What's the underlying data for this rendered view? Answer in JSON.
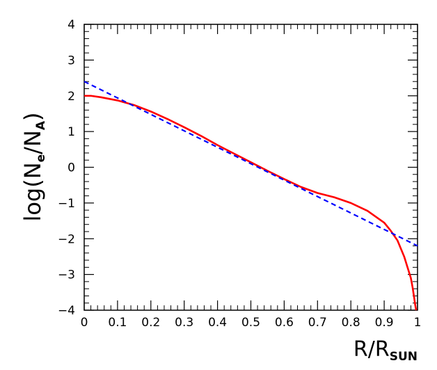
{
  "chart_data": {
    "type": "line",
    "title": "",
    "xlabel": {
      "main": "R/R",
      "sub": "SUN"
    },
    "ylabel": {
      "prefix": "log(N",
      "sub1": "e",
      "mid": "/N",
      "sub2": "A",
      "suffix": ")"
    },
    "xlim": [
      0,
      1
    ],
    "ylim": [
      -4,
      4
    ],
    "x_ticks": [
      0,
      0.1,
      0.2,
      0.3,
      0.4,
      0.5,
      0.6,
      0.7,
      0.8,
      0.9,
      1
    ],
    "x_tick_labels": [
      "0",
      "0.1",
      "0.2",
      "0.3",
      "0.4",
      "0.5",
      "0.6",
      "0.7",
      "0.8",
      "0.9",
      "1"
    ],
    "y_ticks": [
      -4,
      -3,
      -2,
      -1,
      0,
      1,
      2,
      3,
      4
    ],
    "y_tick_labels": [
      "−4",
      "−3",
      "−2",
      "−1",
      "0",
      "1",
      "2",
      "3",
      "4"
    ],
    "grid": false,
    "legend": "none",
    "series": [
      {
        "style": "solid",
        "color": "#ff0000",
        "x": [
          0,
          0.02,
          0.05,
          0.1,
          0.15,
          0.2,
          0.25,
          0.3,
          0.35,
          0.4,
          0.45,
          0.5,
          0.55,
          0.6,
          0.65,
          0.7,
          0.75,
          0.8,
          0.85,
          0.9,
          0.92,
          0.94,
          0.96,
          0.97,
          0.98,
          0.985,
          0.99,
          0.993,
          0.996
        ],
        "y": [
          2.0,
          2.0,
          1.96,
          1.87,
          1.74,
          1.56,
          1.35,
          1.12,
          0.88,
          0.62,
          0.38,
          0.14,
          -0.1,
          -0.33,
          -0.55,
          -0.72,
          -0.84,
          -1.0,
          -1.22,
          -1.55,
          -1.78,
          -2.05,
          -2.5,
          -2.8,
          -3.1,
          -3.35,
          -3.65,
          -3.85,
          -4.0
        ]
      },
      {
        "style": "dashed",
        "color": "#0000ff",
        "x": [
          0,
          1
        ],
        "y": [
          2.4,
          -2.2
        ]
      }
    ]
  }
}
